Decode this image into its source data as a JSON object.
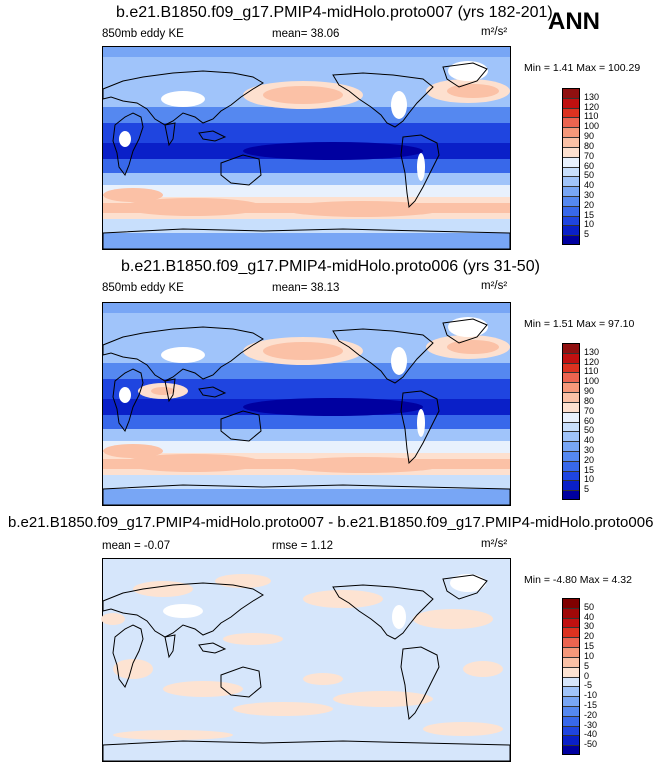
{
  "season": "ANN",
  "chart_data": [
    {
      "type": "heatmap",
      "title": "b.e21.B1850.f09_g17.PMIP4-midHolo.proto007 (yrs 182-201)",
      "variable": "850mb eddy KE",
      "stat1": "mean=  38.06",
      "units": "m²/s²",
      "minmax": "Min =   1.41 Max = 100.29",
      "min": 1.41,
      "max": 100.29,
      "mean": 38.06,
      "levels": [
        5,
        10,
        15,
        20,
        30,
        40,
        50,
        60,
        70,
        80,
        90,
        100,
        110,
        120,
        130
      ],
      "level_labels": [
        "5",
        "10",
        "15",
        "20",
        "30",
        "40",
        "50",
        "60",
        "70",
        "80",
        "90",
        "100",
        "110",
        "120",
        "130"
      ],
      "colors": [
        "#0000a0",
        "#0a20c8",
        "#1f45e0",
        "#3868ea",
        "#5588f0",
        "#78a6f5",
        "#a0c4fa",
        "#c8dffc",
        "#e8f1fd",
        "#fde0cf",
        "#fbc1a6",
        "#f6987a",
        "#ec6450",
        "#dc3220",
        "#c01010",
        "#901010"
      ]
    },
    {
      "type": "heatmap",
      "title": "b.e21.B1850.f09_g17.PMIP4-midHolo.proto006 (yrs 31-50)",
      "variable": "850mb eddy KE",
      "stat1": "mean=  38.13",
      "units": "m²/s²",
      "minmax": "Min =   1.51 Max =  97.10",
      "min": 1.51,
      "max": 97.1,
      "mean": 38.13,
      "levels": [
        5,
        10,
        15,
        20,
        30,
        40,
        50,
        60,
        70,
        80,
        90,
        100,
        110,
        120,
        130
      ],
      "level_labels": [
        "5",
        "10",
        "15",
        "20",
        "30",
        "40",
        "50",
        "60",
        "70",
        "80",
        "90",
        "100",
        "110",
        "120",
        "130"
      ],
      "colors": [
        "#0000a0",
        "#0a20c8",
        "#1f45e0",
        "#3868ea",
        "#5588f0",
        "#78a6f5",
        "#a0c4fa",
        "#c8dffc",
        "#e8f1fd",
        "#fde0cf",
        "#fbc1a6",
        "#f6987a",
        "#ec6450",
        "#dc3220",
        "#c01010",
        "#901010"
      ]
    },
    {
      "type": "heatmap",
      "title": "b.e21.B1850.f09_g17.PMIP4-midHolo.proto007 - b.e21.B1850.f09_g17.PMIP4-midHolo.proto006",
      "stat1": "mean =  -0.07",
      "stat2": "rmse =   1.12",
      "units": "m²/s²",
      "minmax": "Min =  -4.80 Max =   4.32",
      "min": -4.8,
      "max": 4.32,
      "mean": -0.07,
      "rmse": 1.12,
      "levels": [
        -50,
        -40,
        -30,
        -20,
        -15,
        -10,
        -5,
        0,
        5,
        10,
        15,
        20,
        30,
        40,
        50
      ],
      "level_labels": [
        "-50",
        "-40",
        "-30",
        "-20",
        "-15",
        "-10",
        "-5",
        "0",
        "5",
        "10",
        "15",
        "20",
        "30",
        "40",
        "50"
      ],
      "colors": [
        "#0000a0",
        "#0a20c8",
        "#1f45e0",
        "#3868ea",
        "#5588f0",
        "#78a6f5",
        "#a0c4fa",
        "#d6e6fb",
        "#fde3d2",
        "#fbc1a6",
        "#f6987a",
        "#ec6450",
        "#dc3220",
        "#c01010",
        "#a00808",
        "#800000"
      ]
    }
  ]
}
